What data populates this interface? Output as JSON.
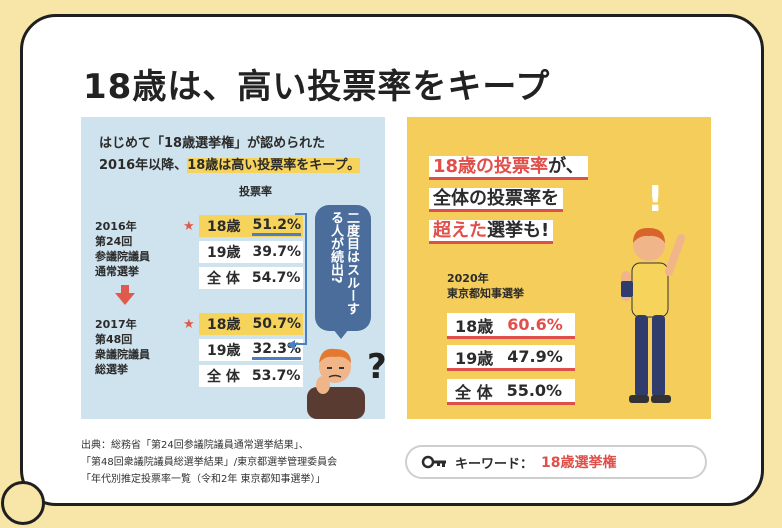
{
  "title": "18歳は、高い投票率をキープ",
  "left": {
    "intro_line1": "はじめて「18歳選挙権」が認められた",
    "intro_line2_a": "2016年以降、",
    "intro_line2_hl": "18歳は高い投票率をキープ。",
    "rate_header": "投票率",
    "group1": {
      "label_lines": [
        "2016年",
        "第24回",
        "参議院議員",
        "通常選挙"
      ],
      "rows": [
        {
          "age": "18歳",
          "value": "51.2%"
        },
        {
          "age": "19歳",
          "value": "39.7%"
        },
        {
          "age": "全 体",
          "value": "54.7%"
        }
      ]
    },
    "group2": {
      "label_lines": [
        "2017年",
        "第48回",
        "衆議院議員",
        "総選挙"
      ],
      "rows": [
        {
          "age": "18歳",
          "value": "50.7%"
        },
        {
          "age": "19歳",
          "value": "32.3%"
        },
        {
          "age": "全 体",
          "value": "53.7%"
        }
      ]
    },
    "star": "★",
    "bubble_text": "二度目はスルーする人が続出?",
    "question_mark": "?"
  },
  "right": {
    "head_line1_red": "18歳の投票率",
    "head_line1_rest": "が、",
    "head_line2": "全体の投票率を",
    "head_line3_red": "超えた",
    "head_line3_rest": "選挙も!",
    "event_line1": "2020年",
    "event_line2": "東京都知事選挙",
    "rows": [
      {
        "age": "18歳",
        "value": "60.6%"
      },
      {
        "age": "19歳",
        "value": "47.9%"
      },
      {
        "age": "全 体",
        "value": "55.0%"
      }
    ],
    "exclamation": "!"
  },
  "source_lines": [
    "出典：総務省「第24回参議院議員通常選挙結果」、",
    "「第48回衆議院議員総選挙結果」/東京都選挙管理委員会",
    "「年代別推定投票率一覧（令和2年 東京都知事選挙）」"
  ],
  "keyword": {
    "label": "キーワード：",
    "value": "18歳選挙権"
  },
  "colors": {
    "accent_red": "#e0504a",
    "accent_yellow": "#f5cd5a",
    "panel_blue": "#cfe3ee",
    "bubble_blue": "#4a6d9c"
  }
}
